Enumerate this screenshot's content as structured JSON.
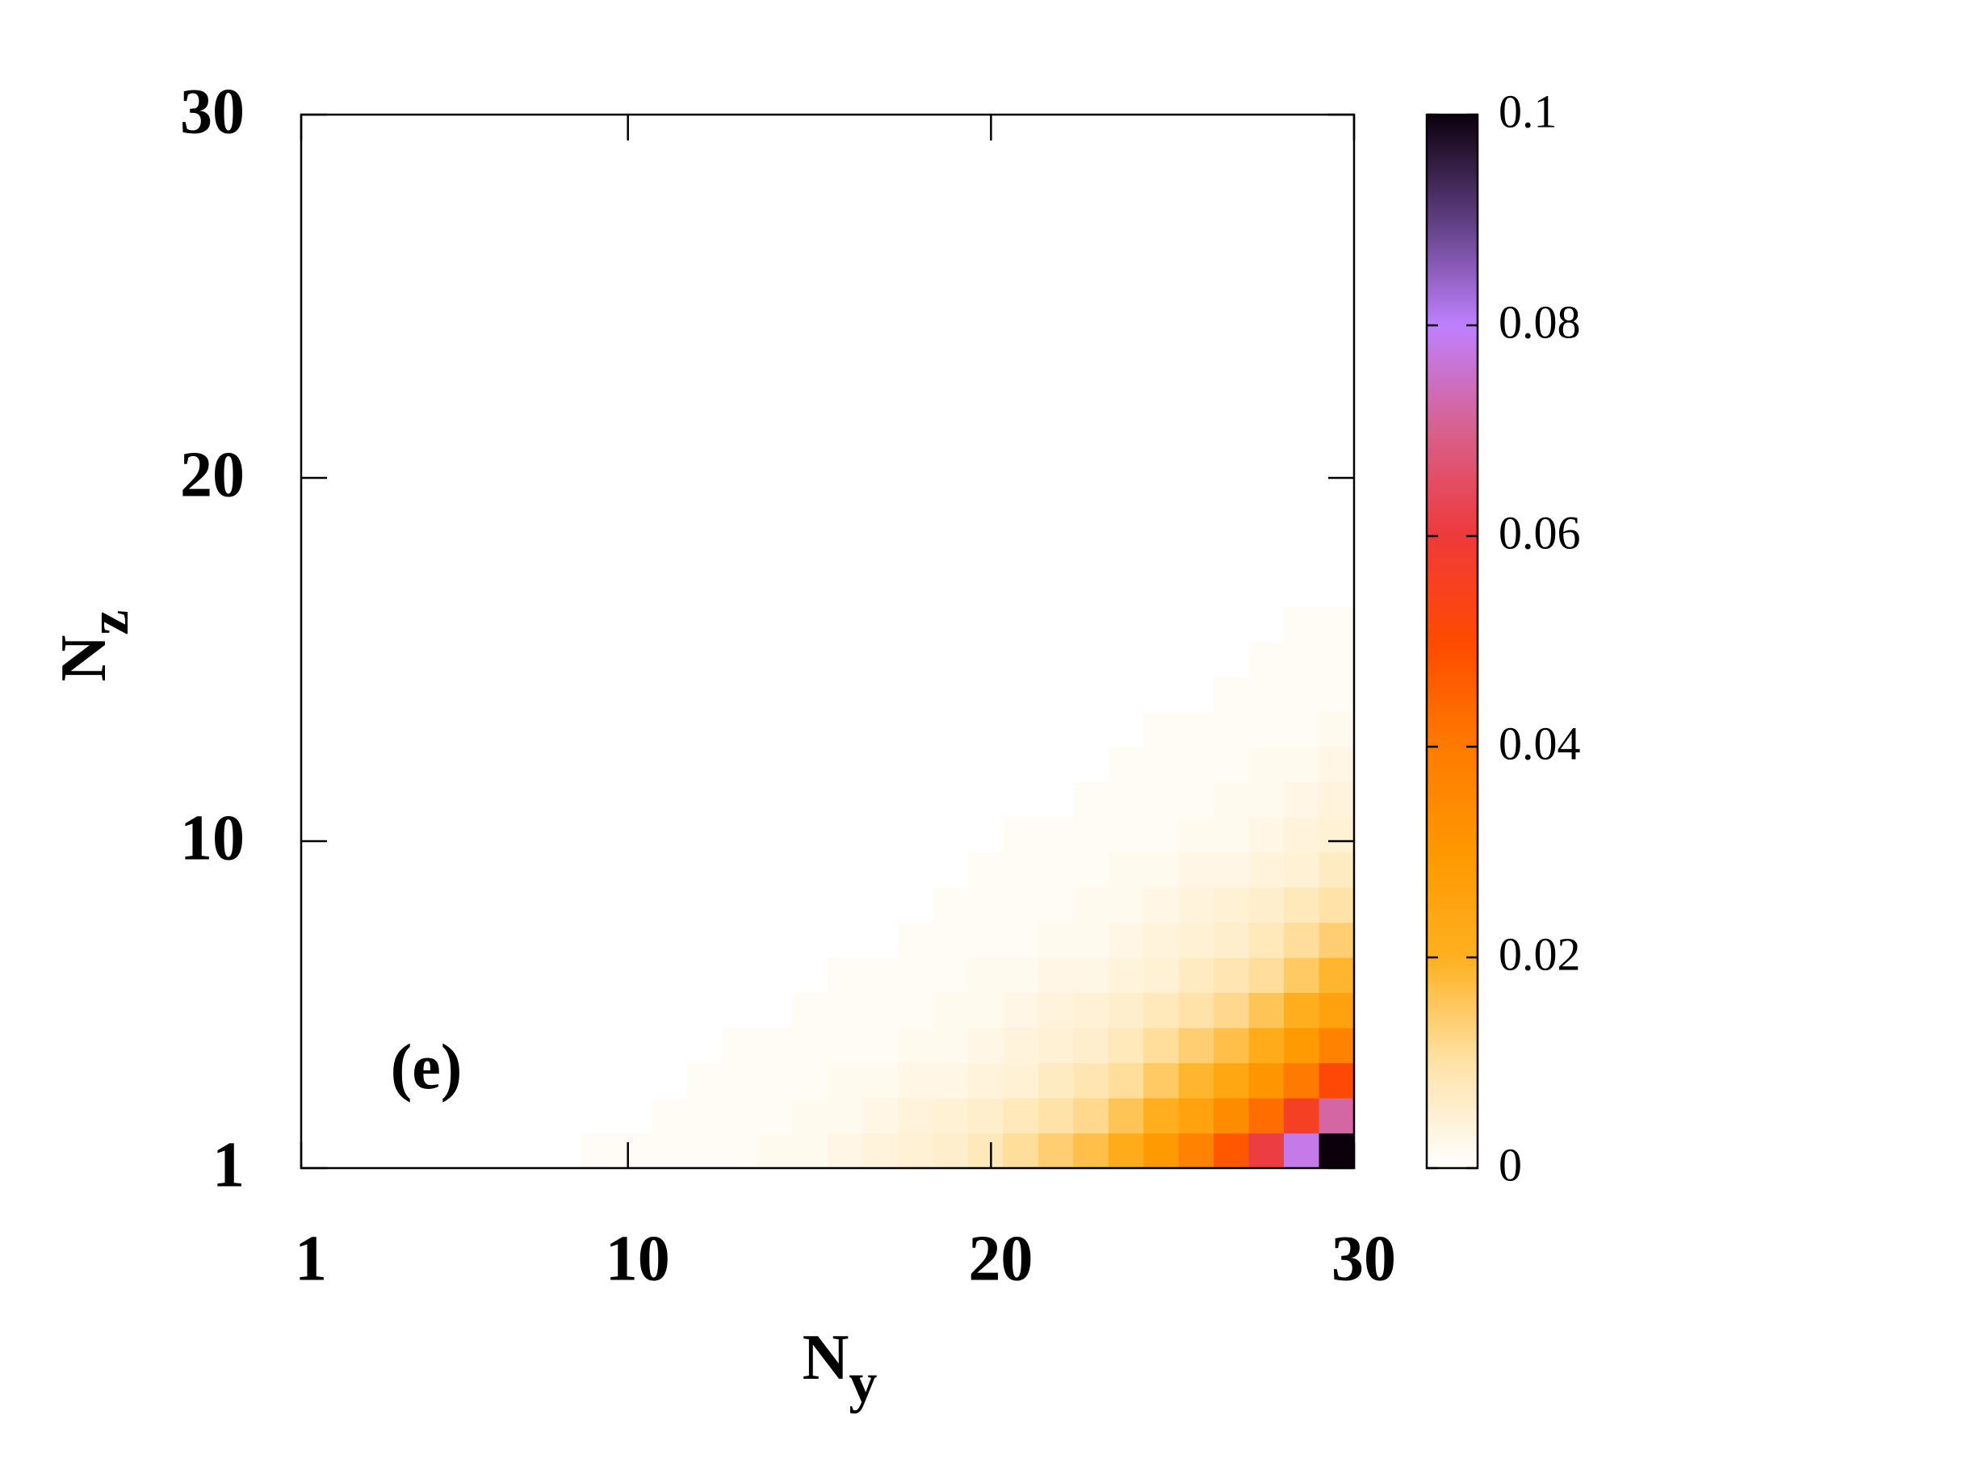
{
  "chart_data": {
    "type": "heatmap",
    "x_label": {
      "text": "N",
      "sub": "y"
    },
    "y_label": {
      "text": "N",
      "sub": "z"
    },
    "annotation": "(e)",
    "xlim": [
      1,
      30
    ],
    "ylim": [
      1,
      30
    ],
    "xticks": [
      1,
      10,
      20,
      30
    ],
    "yticks": [
      1,
      10,
      20,
      30
    ],
    "zlim": [
      0,
      0.1
    ],
    "zticks": [
      0,
      0.02,
      0.04,
      0.06,
      0.08,
      0.1
    ],
    "colormap": [
      "#ffffff",
      "#ffe2a8",
      "#ffb020",
      "#ff9800",
      "#ff7a00",
      "#ff4a00",
      "#ee3a3a",
      "#d8608c",
      "#bf80ff",
      "#5e3e80",
      "#0c000c"
    ],
    "z": [
      [
        0,
        0,
        0,
        0,
        0,
        0,
        0,
        0,
        0.001,
        0.001,
        0.001,
        0.001,
        0.001,
        0.002,
        0.002,
        0.003,
        0.004,
        0.005,
        0.006,
        0.008,
        0.011,
        0.014,
        0.017,
        0.022,
        0.029,
        0.037,
        0.047,
        0.061,
        0.078,
        0.1
      ],
      [
        0,
        0,
        0,
        0,
        0,
        0,
        0,
        0,
        0,
        0,
        0.001,
        0.001,
        0.001,
        0.001,
        0.002,
        0.002,
        0.003,
        0.004,
        0.005,
        0.006,
        0.008,
        0.01,
        0.012,
        0.016,
        0.021,
        0.026,
        0.034,
        0.043,
        0.056,
        0.072
      ],
      [
        0,
        0,
        0,
        0,
        0,
        0,
        0,
        0,
        0,
        0,
        0,
        0.001,
        0.001,
        0.001,
        0.001,
        0.002,
        0.002,
        0.003,
        0.003,
        0.004,
        0.005,
        0.007,
        0.009,
        0.011,
        0.015,
        0.019,
        0.024,
        0.031,
        0.04,
        0.051
      ],
      [
        0,
        0,
        0,
        0,
        0,
        0,
        0,
        0,
        0,
        0,
        0,
        0,
        0.001,
        0.001,
        0.001,
        0.001,
        0.001,
        0.002,
        0.002,
        0.003,
        0.004,
        0.005,
        0.006,
        0.008,
        0.011,
        0.014,
        0.017,
        0.022,
        0.029,
        0.037
      ],
      [
        0,
        0,
        0,
        0,
        0,
        0,
        0,
        0,
        0,
        0,
        0,
        0,
        0,
        0,
        0.001,
        0.001,
        0.001,
        0.001,
        0.002,
        0.002,
        0.003,
        0.004,
        0.005,
        0.006,
        0.008,
        0.01,
        0.012,
        0.016,
        0.021,
        0.026
      ],
      [
        0,
        0,
        0,
        0,
        0,
        0,
        0,
        0,
        0,
        0,
        0,
        0,
        0,
        0,
        0,
        0.001,
        0.001,
        0.001,
        0.001,
        0.002,
        0.002,
        0.003,
        0.003,
        0.004,
        0.005,
        0.007,
        0.009,
        0.011,
        0.015,
        0.019
      ],
      [
        0,
        0,
        0,
        0,
        0,
        0,
        0,
        0,
        0,
        0,
        0,
        0,
        0,
        0,
        0,
        0,
        0,
        0.001,
        0.001,
        0.001,
        0.001,
        0.002,
        0.002,
        0.003,
        0.004,
        0.005,
        0.006,
        0.008,
        0.011,
        0.014
      ],
      [
        0,
        0,
        0,
        0,
        0,
        0,
        0,
        0,
        0,
        0,
        0,
        0,
        0,
        0,
        0,
        0,
        0,
        0,
        0.001,
        0.001,
        0.001,
        0.001,
        0.002,
        0.002,
        0.003,
        0.004,
        0.005,
        0.006,
        0.008,
        0.01
      ],
      [
        0,
        0,
        0,
        0,
        0,
        0,
        0,
        0,
        0,
        0,
        0,
        0,
        0,
        0,
        0,
        0,
        0,
        0,
        0,
        0.001,
        0.001,
        0.001,
        0.001,
        0.002,
        0.002,
        0.003,
        0.003,
        0.004,
        0.005,
        0.007
      ],
      [
        0,
        0,
        0,
        0,
        0,
        0,
        0,
        0,
        0,
        0,
        0,
        0,
        0,
        0,
        0,
        0,
        0,
        0,
        0,
        0,
        0.001,
        0.001,
        0.001,
        0.001,
        0.001,
        0.002,
        0.002,
        0.003,
        0.004,
        0.005
      ],
      [
        0,
        0,
        0,
        0,
        0,
        0,
        0,
        0,
        0,
        0,
        0,
        0,
        0,
        0,
        0,
        0,
        0,
        0,
        0,
        0,
        0,
        0,
        0.001,
        0.001,
        0.001,
        0.001,
        0.002,
        0.002,
        0.003,
        0.004
      ],
      [
        0,
        0,
        0,
        0,
        0,
        0,
        0,
        0,
        0,
        0,
        0,
        0,
        0,
        0,
        0,
        0,
        0,
        0,
        0,
        0,
        0,
        0,
        0,
        0.001,
        0.001,
        0.001,
        0.001,
        0.002,
        0.002,
        0.003
      ],
      [
        0,
        0,
        0,
        0,
        0,
        0,
        0,
        0,
        0,
        0,
        0,
        0,
        0,
        0,
        0,
        0,
        0,
        0,
        0,
        0,
        0,
        0,
        0,
        0,
        0.001,
        0.001,
        0.001,
        0.001,
        0.001,
        0.002
      ],
      [
        0,
        0,
        0,
        0,
        0,
        0,
        0,
        0,
        0,
        0,
        0,
        0,
        0,
        0,
        0,
        0,
        0,
        0,
        0,
        0,
        0,
        0,
        0,
        0,
        0,
        0,
        0.001,
        0.001,
        0.001,
        0.001
      ],
      [
        0,
        0,
        0,
        0,
        0,
        0,
        0,
        0,
        0,
        0,
        0,
        0,
        0,
        0,
        0,
        0,
        0,
        0,
        0,
        0,
        0,
        0,
        0,
        0,
        0,
        0,
        0,
        0.001,
        0.001,
        0.001
      ],
      [
        0,
        0,
        0,
        0,
        0,
        0,
        0,
        0,
        0,
        0,
        0,
        0,
        0,
        0,
        0,
        0,
        0,
        0,
        0,
        0,
        0,
        0,
        0,
        0,
        0,
        0,
        0,
        0,
        0.001,
        0.001
      ],
      [
        0,
        0,
        0,
        0,
        0,
        0,
        0,
        0,
        0,
        0,
        0,
        0,
        0,
        0,
        0,
        0,
        0,
        0,
        0,
        0,
        0,
        0,
        0,
        0,
        0,
        0,
        0,
        0,
        0,
        0
      ],
      [
        0,
        0,
        0,
        0,
        0,
        0,
        0,
        0,
        0,
        0,
        0,
        0,
        0,
        0,
        0,
        0,
        0,
        0,
        0,
        0,
        0,
        0,
        0,
        0,
        0,
        0,
        0,
        0,
        0,
        0
      ],
      [
        0,
        0,
        0,
        0,
        0,
        0,
        0,
        0,
        0,
        0,
        0,
        0,
        0,
        0,
        0,
        0,
        0,
        0,
        0,
        0,
        0,
        0,
        0,
        0,
        0,
        0,
        0,
        0,
        0,
        0
      ],
      [
        0,
        0,
        0,
        0,
        0,
        0,
        0,
        0,
        0,
        0,
        0,
        0,
        0,
        0,
        0,
        0,
        0,
        0,
        0,
        0,
        0,
        0,
        0,
        0,
        0,
        0,
        0,
        0,
        0,
        0
      ],
      [
        0,
        0,
        0,
        0,
        0,
        0,
        0,
        0,
        0,
        0,
        0,
        0,
        0,
        0,
        0,
        0,
        0,
        0,
        0,
        0,
        0,
        0,
        0,
        0,
        0,
        0,
        0,
        0,
        0,
        0
      ],
      [
        0,
        0,
        0,
        0,
        0,
        0,
        0,
        0,
        0,
        0,
        0,
        0,
        0,
        0,
        0,
        0,
        0,
        0,
        0,
        0,
        0,
        0,
        0,
        0,
        0,
        0,
        0,
        0,
        0,
        0
      ],
      [
        0,
        0,
        0,
        0,
        0,
        0,
        0,
        0,
        0,
        0,
        0,
        0,
        0,
        0,
        0,
        0,
        0,
        0,
        0,
        0,
        0,
        0,
        0,
        0,
        0,
        0,
        0,
        0,
        0,
        0
      ],
      [
        0,
        0,
        0,
        0,
        0,
        0,
        0,
        0,
        0,
        0,
        0,
        0,
        0,
        0,
        0,
        0,
        0,
        0,
        0,
        0,
        0,
        0,
        0,
        0,
        0,
        0,
        0,
        0,
        0,
        0
      ],
      [
        0,
        0,
        0,
        0,
        0,
        0,
        0,
        0,
        0,
        0,
        0,
        0,
        0,
        0,
        0,
        0,
        0,
        0,
        0,
        0,
        0,
        0,
        0,
        0,
        0,
        0,
        0,
        0,
        0,
        0
      ],
      [
        0,
        0,
        0,
        0,
        0,
        0,
        0,
        0,
        0,
        0,
        0,
        0,
        0,
        0,
        0,
        0,
        0,
        0,
        0,
        0,
        0,
        0,
        0,
        0,
        0,
        0,
        0,
        0,
        0,
        0
      ],
      [
        0,
        0,
        0,
        0,
        0,
        0,
        0,
        0,
        0,
        0,
        0,
        0,
        0,
        0,
        0,
        0,
        0,
        0,
        0,
        0,
        0,
        0,
        0,
        0,
        0,
        0,
        0,
        0,
        0,
        0
      ],
      [
        0,
        0,
        0,
        0,
        0,
        0,
        0,
        0,
        0,
        0,
        0,
        0,
        0,
        0,
        0,
        0,
        0,
        0,
        0,
        0,
        0,
        0,
        0,
        0,
        0,
        0,
        0,
        0,
        0,
        0
      ],
      [
        0,
        0,
        0,
        0,
        0,
        0,
        0,
        0,
        0,
        0,
        0,
        0,
        0,
        0,
        0,
        0,
        0,
        0,
        0,
        0,
        0,
        0,
        0,
        0,
        0,
        0,
        0,
        0,
        0,
        0
      ],
      [
        0,
        0,
        0,
        0,
        0,
        0,
        0,
        0,
        0,
        0,
        0,
        0,
        0,
        0,
        0,
        0,
        0,
        0,
        0,
        0,
        0,
        0,
        0,
        0,
        0,
        0,
        0,
        0,
        0,
        0
      ]
    ]
  }
}
